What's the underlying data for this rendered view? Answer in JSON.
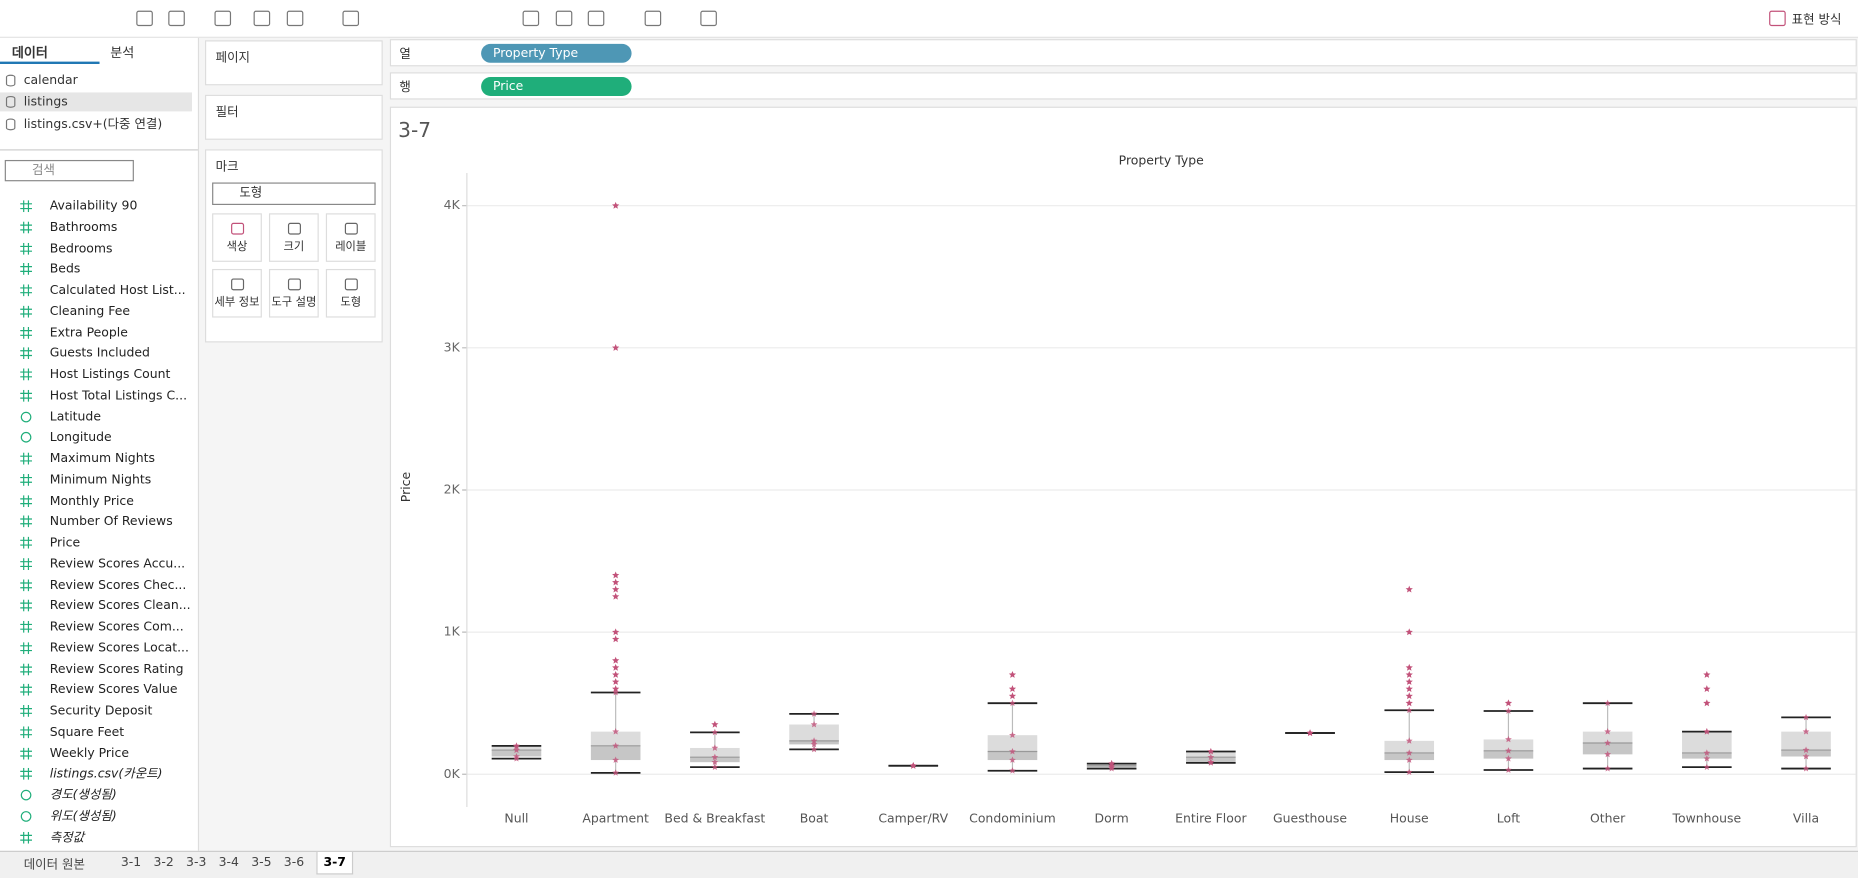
{
  "toolbar": {
    "present_label": "표현 방식"
  },
  "sidebar": {
    "tabs": [
      "데이터",
      "분석"
    ],
    "sources": [
      "calendar",
      "listings",
      "listings.csv+(다중 연결)"
    ],
    "search_placeholder": "검색",
    "fields": [
      {
        "name": "Availability 90",
        "kind": "number"
      },
      {
        "name": "Bathrooms",
        "kind": "number"
      },
      {
        "name": "Bedrooms",
        "kind": "number"
      },
      {
        "name": "Beds",
        "kind": "number"
      },
      {
        "name": "Calculated Host List...",
        "kind": "number"
      },
      {
        "name": "Cleaning Fee",
        "kind": "number"
      },
      {
        "name": "Extra People",
        "kind": "number"
      },
      {
        "name": "Guests Included",
        "kind": "number"
      },
      {
        "name": "Host Listings Count",
        "kind": "number"
      },
      {
        "name": "Host Total Listings C...",
        "kind": "number"
      },
      {
        "name": "Latitude",
        "kind": "geo"
      },
      {
        "name": "Longitude",
        "kind": "geo"
      },
      {
        "name": "Maximum Nights",
        "kind": "number"
      },
      {
        "name": "Minimum Nights",
        "kind": "number"
      },
      {
        "name": "Monthly Price",
        "kind": "number"
      },
      {
        "name": "Number Of Reviews",
        "kind": "number"
      },
      {
        "name": "Price",
        "kind": "number"
      },
      {
        "name": "Review Scores Accu...",
        "kind": "number"
      },
      {
        "name": "Review Scores Chec...",
        "kind": "number"
      },
      {
        "name": "Review Scores Clean...",
        "kind": "number"
      },
      {
        "name": "Review Scores Com...",
        "kind": "number"
      },
      {
        "name": "Review Scores Locat...",
        "kind": "number"
      },
      {
        "name": "Review Scores Rating",
        "kind": "number"
      },
      {
        "name": "Review Scores Value",
        "kind": "number"
      },
      {
        "name": "Security Deposit",
        "kind": "number"
      },
      {
        "name": "Square Feet",
        "kind": "number"
      },
      {
        "name": "Weekly Price",
        "kind": "number"
      },
      {
        "name": "listings.csv(카운트)",
        "kind": "generated-number"
      },
      {
        "name": "경도(생성됨)",
        "kind": "generated-geo"
      },
      {
        "name": "위도(생성됨)",
        "kind": "generated-geo"
      },
      {
        "name": "측정값",
        "kind": "generated-number"
      }
    ]
  },
  "cards": {
    "pages": "페이지",
    "filters": "필터",
    "marks": "마크",
    "mark_type": "도형",
    "mark_buttons": [
      "색상",
      "크기",
      "레이블",
      "세부 정보",
      "도구 설명",
      "도형"
    ]
  },
  "shelves": {
    "columns_label": "열",
    "columns_pill": "Property Type",
    "columns_color": "#4e97b5",
    "rows_label": "행",
    "rows_pill": "Price",
    "rows_color": "#1fae7a"
  },
  "sheet_tabs": {
    "source": "데이터 원본",
    "sheets": [
      "3-1",
      "3-2",
      "3-3",
      "3-4",
      "3-5",
      "3-6",
      "3-7"
    ],
    "active": 6
  },
  "chart_data": {
    "type": "boxplot",
    "title": "3-7",
    "x_label": "Property Type",
    "y_label": "Price",
    "categories": [
      "Null",
      "Apartment",
      "Bed & Breakfast",
      "Boat",
      "Camper/RV",
      "Condominium",
      "Dorm",
      "Entire Floor",
      "Guesthouse",
      "House",
      "Loft",
      "Other",
      "Townhouse",
      "Villa"
    ],
    "boxes": [
      {
        "lo": 110,
        "q1": 125,
        "median": 170,
        "q3": 195,
        "hi": 200
      },
      {
        "lo": 10,
        "q1": 100,
        "median": 200,
        "q3": 300,
        "hi": 575
      },
      {
        "lo": 50,
        "q1": 85,
        "median": 120,
        "q3": 185,
        "hi": 295
      },
      {
        "lo": 175,
        "q1": 210,
        "median": 235,
        "q3": 350,
        "hi": 425
      },
      {
        "lo": 60,
        "q1": 60,
        "median": 60,
        "q3": 60,
        "hi": 60
      },
      {
        "lo": 25,
        "q1": 100,
        "median": 160,
        "q3": 275,
        "hi": 500
      },
      {
        "lo": 40,
        "q1": 50,
        "median": 60,
        "q3": 75,
        "hi": 75
      },
      {
        "lo": 80,
        "q1": 85,
        "median": 120,
        "q3": 160,
        "hi": 160
      },
      {
        "lo": 290,
        "q1": 290,
        "median": 290,
        "q3": 290,
        "hi": 290
      },
      {
        "lo": 15,
        "q1": 100,
        "median": 150,
        "q3": 235,
        "hi": 450
      },
      {
        "lo": 30,
        "q1": 110,
        "median": 165,
        "q3": 245,
        "hi": 445
      },
      {
        "lo": 40,
        "q1": 140,
        "median": 220,
        "q3": 300,
        "hi": 500
      },
      {
        "lo": 50,
        "q1": 110,
        "median": 150,
        "q3": 300,
        "hi": 300
      },
      {
        "lo": 40,
        "q1": 125,
        "median": 170,
        "q3": 300,
        "hi": 400
      }
    ],
    "outliers": [
      [],
      [
        4000,
        3000,
        1400,
        1350,
        1300,
        1250,
        1000,
        950,
        800,
        750,
        700,
        650,
        600
      ],
      [
        350
      ],
      [],
      [],
      [
        700,
        600,
        550
      ],
      [],
      [],
      [],
      [
        1300,
        1000,
        750,
        700,
        650,
        600,
        550,
        500
      ],
      [
        500
      ],
      [],
      [
        700,
        600,
        500
      ],
      []
    ],
    "color": "#c2527a",
    "box_color_upper": "#dcdcdc",
    "box_color_lower": "#c6c6c6",
    "ylim": [
      -230,
      4230
    ],
    "yticks": [
      {
        "value": 0,
        "label": "0K"
      },
      {
        "value": 1000,
        "label": "1K"
      },
      {
        "value": 2000,
        "label": "2K"
      },
      {
        "value": 3000,
        "label": "3K"
      },
      {
        "value": 4000,
        "label": "4K"
      }
    ],
    "grid": true
  }
}
